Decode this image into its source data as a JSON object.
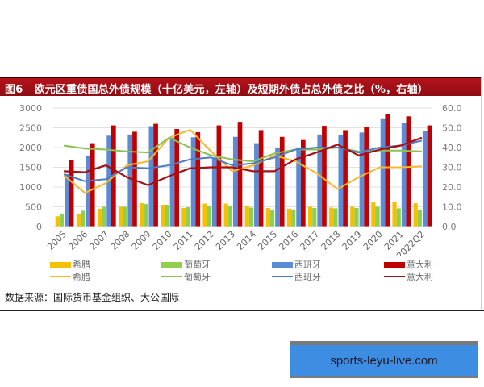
{
  "title": {
    "figure_label": "图6",
    "text": "欧元区重债国总外债规模（十亿美元，左轴）及短期外债占总外债之比（%，右轴）"
  },
  "legend": {
    "bars": [
      {
        "label": "希腊",
        "color": "#f5c000"
      },
      {
        "label": "葡萄牙",
        "color": "#8fd14f"
      },
      {
        "label": "西班牙",
        "color": "#5b8bd6"
      },
      {
        "label": "意大利",
        "color": "#c00000"
      }
    ],
    "lines": [
      {
        "label": "希腊",
        "color": "#f5b82e"
      },
      {
        "label": "葡萄牙",
        "color": "#8cc152"
      },
      {
        "label": "西班牙",
        "color": "#4a7ec4"
      },
      {
        "label": "意大利",
        "color": "#a50f15"
      }
    ]
  },
  "source": "数据来源：国际货币基金组织、大公国际",
  "watermark": "sports-leyu-live.com",
  "chart_data": {
    "type": "bar+line",
    "title": "欧元区重债国总外债规模（十亿美元，左轴）及短期外债占总外债之比（%，右轴）",
    "xlabel": "",
    "ylabel_left": "十亿美元",
    "ylabel_right": "%",
    "categories": [
      "2005",
      "2006",
      "2007",
      "2008",
      "2009",
      "2010",
      "2011",
      "2012",
      "2013",
      "2014",
      "2015",
      "2016",
      "2017",
      "2018",
      "2019",
      "2020",
      "2021",
      "2022Q2"
    ],
    "ylim_left": [
      0,
      3000
    ],
    "yticks_left": [
      "0",
      "500",
      "1000",
      "1500",
      "2000",
      "2500",
      "3000"
    ],
    "ylim_right": [
      0,
      60
    ],
    "yticks_right": [
      "0.0",
      "10.0",
      "20.0",
      "30.0",
      "40.0",
      "50.0",
      "60.0"
    ],
    "grid": true,
    "legend_position": "bottom",
    "bar_series": [
      {
        "name": "希腊",
        "axis": "left",
        "values": [
          260,
          320,
          450,
          500,
          590,
          550,
          470,
          580,
          580,
          510,
          470,
          450,
          500,
          480,
          500,
          610,
          630,
          590
        ]
      },
      {
        "name": "葡萄牙",
        "axis": "left",
        "values": [
          330,
          400,
          500,
          500,
          570,
          550,
          490,
          530,
          510,
          480,
          420,
          420,
          470,
          460,
          470,
          500,
          460,
          410
        ]
      },
      {
        "name": "西班牙",
        "axis": "left",
        "values": [
          1330,
          1800,
          2300,
          2330,
          2540,
          2250,
          2260,
          1750,
          2270,
          2110,
          1980,
          2000,
          2330,
          2320,
          2380,
          2740,
          2630,
          2410
        ]
      },
      {
        "name": "意大利",
        "axis": "left",
        "values": [
          1680,
          2110,
          2560,
          2400,
          2600,
          2470,
          2390,
          2560,
          2650,
          2440,
          2270,
          2190,
          2550,
          2440,
          2510,
          2850,
          2790,
          2560
        ]
      }
    ],
    "line_series": [
      {
        "name": "希腊",
        "axis": "right",
        "values": [
          26,
          17,
          22,
          31,
          33,
          45,
          49,
          38,
          28,
          31,
          36,
          33,
          27,
          19,
          25,
          30,
          30,
          30.5
        ]
      },
      {
        "name": "葡萄牙",
        "axis": "right",
        "values": [
          41,
          39.5,
          39,
          38,
          37.5,
          45,
          40,
          36,
          34,
          33,
          37,
          39,
          39,
          40,
          38,
          38.5,
          38.5,
          38
        ]
      },
      {
        "name": "西班牙",
        "axis": "right",
        "values": [
          26.5,
          23,
          24,
          30,
          29.5,
          31,
          34,
          35,
          31,
          32,
          35,
          39,
          40,
          40,
          37.5,
          40,
          41,
          43.5
        ]
      },
      {
        "name": "意大利",
        "axis": "right",
        "values": [
          28,
          27.5,
          31,
          25,
          21,
          25.5,
          29.5,
          30,
          30,
          28,
          28,
          34,
          37.5,
          41.5,
          36,
          39,
          41,
          45
        ]
      }
    ]
  }
}
